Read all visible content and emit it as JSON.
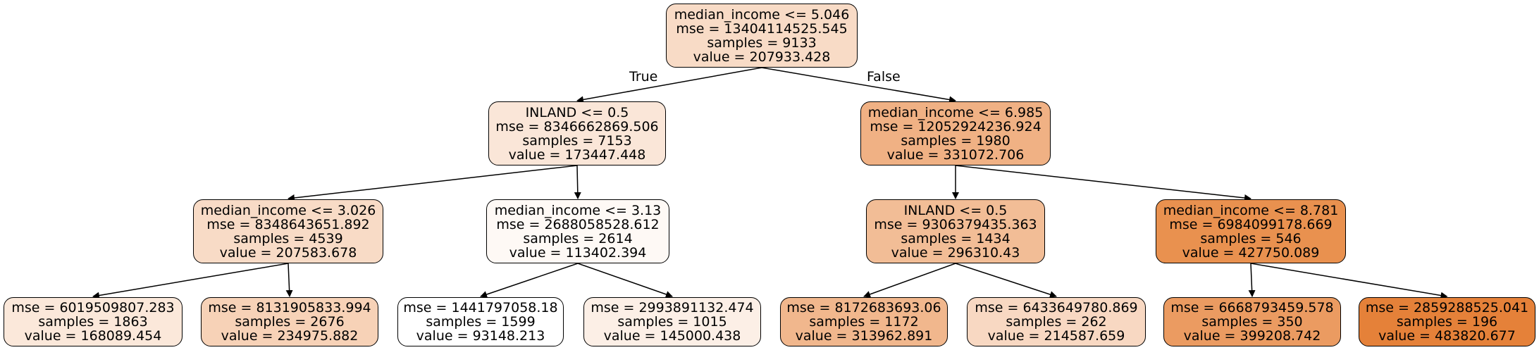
{
  "edge_labels": {
    "true": "True",
    "false": "False"
  },
  "nodes": {
    "n0": {
      "lines": [
        "median_income <= 5.046",
        "mse = 13404114525.545",
        "samples = 9133",
        "value = 207933.428"
      ],
      "color": "#f8dbc6"
    },
    "n1": {
      "lines": [
        "INLAND <= 0.5",
        "mse = 8346662869.506",
        "samples = 7153",
        "value = 173447.448"
      ],
      "color": "#fae6d8"
    },
    "n2": {
      "lines": [
        "median_income <= 6.985",
        "mse = 12052924236.924",
        "samples = 1980",
        "value = 331072.706"
      ],
      "color": "#f0b184"
    },
    "n3": {
      "lines": [
        "median_income <= 3.026",
        "mse = 8348643651.892",
        "samples = 4539",
        "value = 207583.678"
      ],
      "color": "#f8dbc6"
    },
    "n4": {
      "lines": [
        "median_income <= 3.13",
        "mse = 2688058528.612",
        "samples = 2614",
        "value = 113402.394"
      ],
      "color": "#fef9f5"
    },
    "n5": {
      "lines": [
        "INLAND <= 0.5",
        "mse = 9306379435.363",
        "samples = 1434",
        "value = 296310.43"
      ],
      "color": "#f2bd96"
    },
    "n6": {
      "lines": [
        "median_income <= 8.781",
        "mse = 6984099178.669",
        "samples = 546",
        "value = 427750.089"
      ],
      "color": "#e9914f"
    },
    "n7": {
      "lines": [
        "mse = 6019509807.283",
        "samples = 1863",
        "value = 168089.454"
      ],
      "color": "#fbe8da"
    },
    "n8": {
      "lines": [
        "mse = 8131905833.994",
        "samples = 2676",
        "value = 234975.882"
      ],
      "color": "#f7d2b7"
    },
    "n9": {
      "lines": [
        "mse = 1441797058.18",
        "samples = 1599",
        "value = 93148.213"
      ],
      "color": "#ffffff"
    },
    "n10": {
      "lines": [
        "mse = 2993891132.474",
        "samples = 1015",
        "value = 145000.438"
      ],
      "color": "#fcefe6"
    },
    "n11": {
      "lines": [
        "mse = 8172683693.06",
        "samples = 1172",
        "value = 313962.891"
      ],
      "color": "#f1b78d"
    },
    "n12": {
      "lines": [
        "mse = 6433649780.869",
        "samples = 262",
        "value = 214587.659"
      ],
      "color": "#f8d8c2"
    },
    "n13": {
      "lines": [
        "mse = 6668793459.578",
        "samples = 350",
        "value = 399208.742"
      ],
      "color": "#eb9b61"
    },
    "n14": {
      "lines": [
        "mse = 2859288525.041",
        "samples = 196",
        "value = 483820.677"
      ],
      "color": "#e58139"
    }
  }
}
